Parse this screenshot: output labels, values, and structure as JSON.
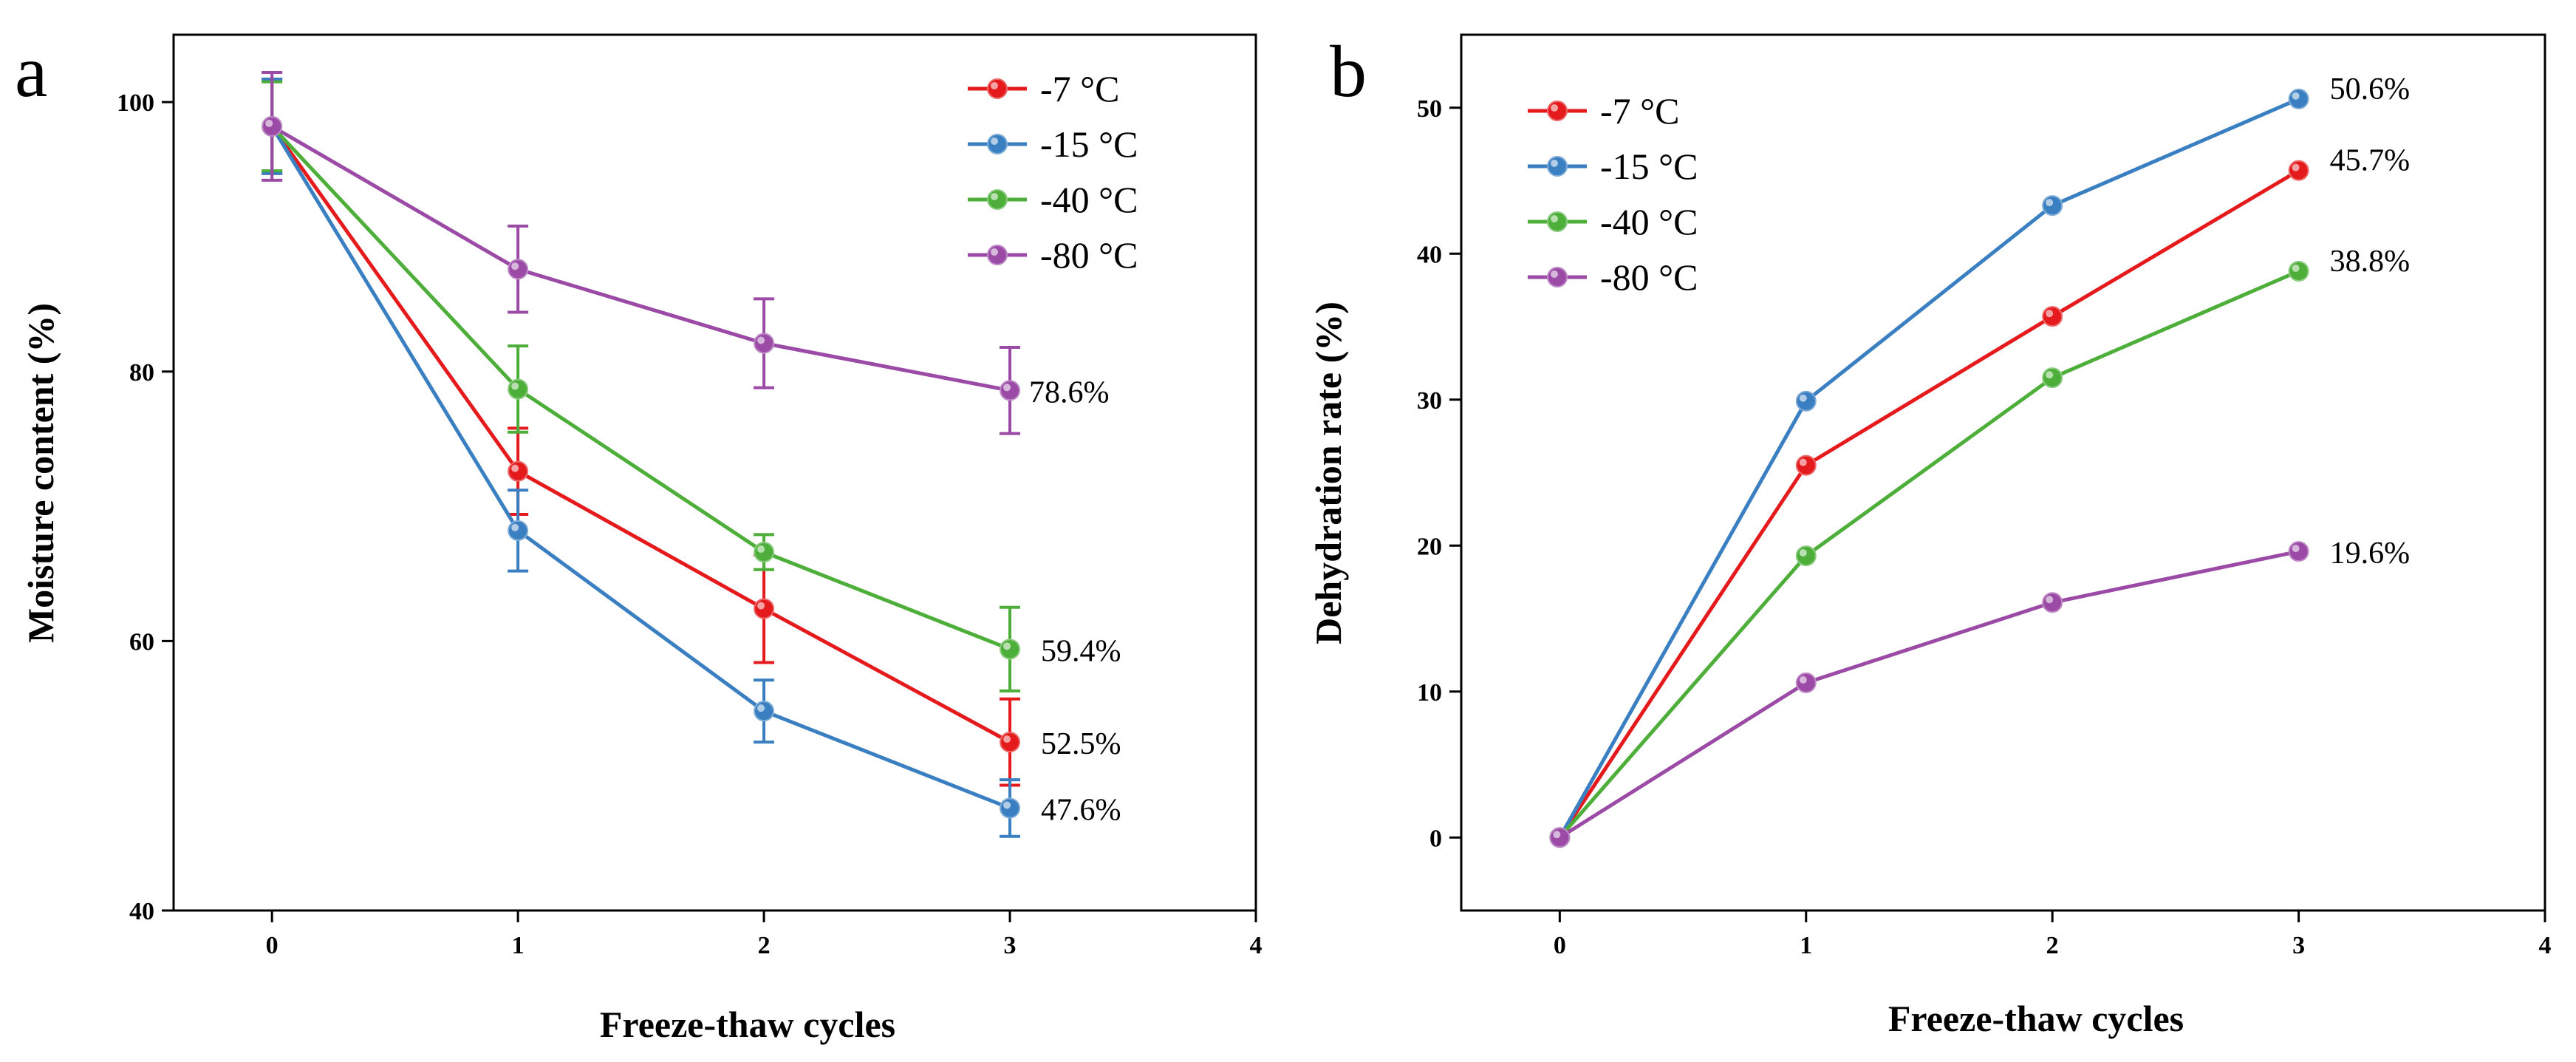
{
  "chart_data": [
    {
      "type": "line",
      "panel_label": "a",
      "title": "",
      "xlabel": "Freeze-thaw cycles",
      "ylabel": "Moisture content (%)",
      "xlim": [
        -0.4,
        4
      ],
      "ylim": [
        40,
        105
      ],
      "xticks": [
        0,
        1,
        2,
        3,
        4
      ],
      "yticks": [
        40,
        60,
        80,
        100
      ],
      "legend_position": "top-right",
      "x": [
        0,
        1,
        2,
        3
      ],
      "series": [
        {
          "name": "-7 °C",
          "color": "#e41a1c",
          "values": [
            98.2,
            72.6,
            62.4,
            52.5
          ],
          "errors": [
            3.5,
            3.2,
            4.0,
            3.2
          ]
        },
        {
          "name": "-15 °C",
          "color": "#3a7fc1",
          "values": [
            98.2,
            68.2,
            54.8,
            47.6
          ],
          "errors": [
            3.5,
            3.0,
            2.3,
            2.1
          ]
        },
        {
          "name": "-40 °C",
          "color": "#4daf3a",
          "values": [
            98.2,
            78.7,
            66.6,
            59.4
          ],
          "errors": [
            3.3,
            3.2,
            1.3,
            3.1
          ]
        },
        {
          "name": "-80 °C",
          "color": "#9b4ba6",
          "values": [
            98.2,
            87.6,
            82.1,
            78.6
          ],
          "errors": [
            4.0,
            3.2,
            3.3,
            3.2
          ]
        }
      ],
      "annotations": [
        {
          "text": "78.6%",
          "series": 3,
          "x": 3
        },
        {
          "text": "59.4%",
          "series": 2,
          "x": 3
        },
        {
          "text": "52.5%",
          "series": 0,
          "x": 3
        },
        {
          "text": "47.6%",
          "series": 1,
          "x": 3
        }
      ]
    },
    {
      "type": "line",
      "panel_label": "b",
      "title": "",
      "xlabel": "Freeze-thaw cycles",
      "ylabel": "Dehydration rate (%)",
      "xlim": [
        -0.4,
        4
      ],
      "ylim": [
        -5,
        55
      ],
      "xticks": [
        0,
        1,
        2,
        3,
        4
      ],
      "yticks": [
        0,
        10,
        20,
        30,
        40,
        50
      ],
      "legend_position": "top-left",
      "x": [
        0,
        1,
        2,
        3
      ],
      "series": [
        {
          "name": "-7 °C",
          "color": "#e41a1c",
          "values": [
            0,
            25.5,
            35.7,
            45.7
          ]
        },
        {
          "name": "-15 °C",
          "color": "#3a7fc1",
          "values": [
            0,
            29.9,
            43.3,
            50.6
          ]
        },
        {
          "name": "-40 °C",
          "color": "#4daf3a",
          "values": [
            0,
            19.3,
            31.5,
            38.8
          ]
        },
        {
          "name": "-80 °C",
          "color": "#9b4ba6",
          "values": [
            0,
            10.6,
            16.1,
            19.6
          ]
        }
      ],
      "annotations": [
        {
          "text": "50.6%",
          "series": 1,
          "x": 3
        },
        {
          "text": "45.7%",
          "series": 0,
          "x": 3
        },
        {
          "text": "38.8%",
          "series": 2,
          "x": 3
        },
        {
          "text": "19.6%",
          "series": 3,
          "x": 3
        }
      ]
    }
  ]
}
